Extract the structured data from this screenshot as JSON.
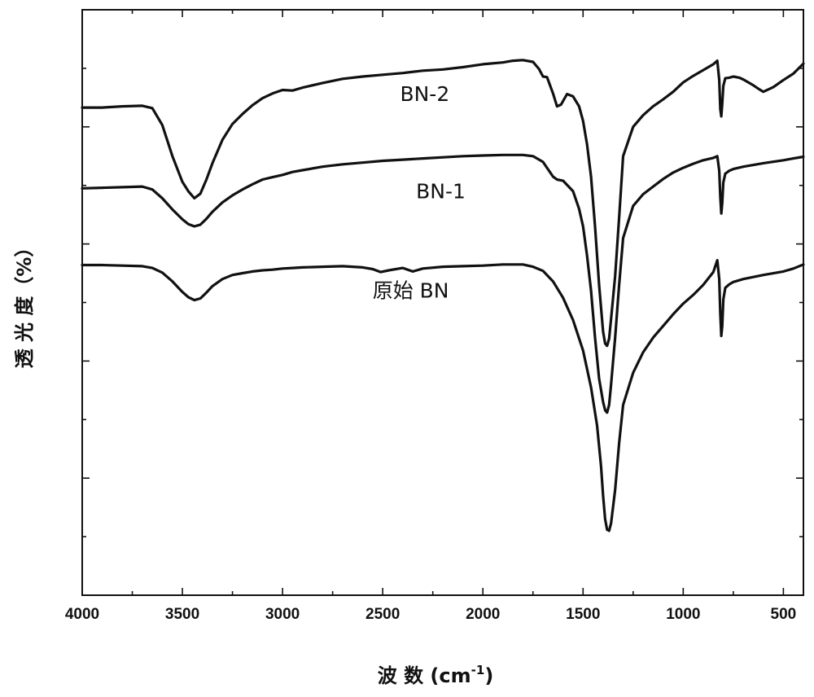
{
  "chart_data": {
    "type": "line",
    "title": "",
    "xlabel": "波 数 (cm",
    "xlabel_sup": "-1",
    "xlabel_close": ")",
    "ylabel": "透 光 度（%）",
    "xlim": [
      4000,
      400
    ],
    "x_reversed": true,
    "x_ticks": [
      4000,
      3500,
      3000,
      2500,
      2000,
      1500,
      1000,
      500
    ],
    "x_tick_labels": [
      "4000",
      "3500",
      "3000",
      "2500",
      "2000",
      "1500",
      "1000",
      "500"
    ],
    "y_tick_labels": false,
    "ylim": [
      0,
      100
    ],
    "grid": false,
    "legend": "none",
    "series": [
      {
        "name": "BN-2",
        "x": [
          4000,
          3900,
          3800,
          3700,
          3650,
          3600,
          3550,
          3500,
          3470,
          3440,
          3410,
          3380,
          3350,
          3300,
          3250,
          3200,
          3150,
          3100,
          3050,
          3000,
          2950,
          2900,
          2800,
          2700,
          2600,
          2500,
          2400,
          2300,
          2200,
          2100,
          2000,
          1900,
          1850,
          1800,
          1750,
          1720,
          1700,
          1680,
          1650,
          1630,
          1610,
          1580,
          1550,
          1520,
          1500,
          1480,
          1460,
          1440,
          1420,
          1400,
          1390,
          1380,
          1370,
          1360,
          1340,
          1320,
          1300,
          1250,
          1200,
          1150,
          1100,
          1050,
          1000,
          950,
          900,
          850,
          830,
          820,
          815,
          810,
          805,
          800,
          790,
          770,
          750,
          720,
          700,
          650,
          620,
          600,
          550,
          500,
          450,
          400
        ],
        "y": [
          83.3,
          83.3,
          83.5,
          83.6,
          83.2,
          80.3,
          75.0,
          70.6,
          69.0,
          67.8,
          68.6,
          71.0,
          73.8,
          77.8,
          80.5,
          82.2,
          83.7,
          84.9,
          85.7,
          86.3,
          86.2,
          86.7,
          87.5,
          88.2,
          88.6,
          88.9,
          89.2,
          89.6,
          89.8,
          90.2,
          90.7,
          91.0,
          91.3,
          91.4,
          91.1,
          89.9,
          88.6,
          88.5,
          85.7,
          83.5,
          83.8,
          85.6,
          85.2,
          83.5,
          81.0,
          77.0,
          71.5,
          63.0,
          53.0,
          45.0,
          43.0,
          42.6,
          43.8,
          47.2,
          54.5,
          64.5,
          75.0,
          80.0,
          82.0,
          83.5,
          84.7,
          86.0,
          87.6,
          88.7,
          89.7,
          90.7,
          91.3,
          88.0,
          83.0,
          81.8,
          84.0,
          87.0,
          88.3,
          88.4,
          88.6,
          88.4,
          88.1,
          87.1,
          86.4,
          86.0,
          86.8,
          88.0,
          89.1,
          90.8
        ]
      },
      {
        "name": "BN-1",
        "x": [
          4000,
          3900,
          3800,
          3700,
          3650,
          3600,
          3550,
          3500,
          3470,
          3440,
          3410,
          3380,
          3350,
          3300,
          3250,
          3200,
          3150,
          3100,
          3050,
          3000,
          2950,
          2900,
          2800,
          2700,
          2600,
          2500,
          2400,
          2300,
          2200,
          2100,
          2000,
          1900,
          1850,
          1800,
          1750,
          1700,
          1680,
          1650,
          1630,
          1600,
          1550,
          1520,
          1500,
          1480,
          1460,
          1440,
          1420,
          1400,
          1390,
          1380,
          1370,
          1360,
          1340,
          1320,
          1300,
          1250,
          1200,
          1150,
          1100,
          1050,
          1000,
          950,
          900,
          850,
          830,
          820,
          815,
          810,
          805,
          800,
          790,
          770,
          750,
          700,
          600,
          500,
          450,
          400
        ],
        "y": [
          69.5,
          69.6,
          69.7,
          69.8,
          69.3,
          67.8,
          65.9,
          64.2,
          63.4,
          63.0,
          63.3,
          64.3,
          65.5,
          67.1,
          68.3,
          69.3,
          70.2,
          71.0,
          71.4,
          71.8,
          72.3,
          72.6,
          73.2,
          73.6,
          73.9,
          74.2,
          74.4,
          74.6,
          74.8,
          75.0,
          75.1,
          75.2,
          75.2,
          75.2,
          75.0,
          74.0,
          73.0,
          71.5,
          71.0,
          70.8,
          69.0,
          66.0,
          63.0,
          58.0,
          52.0,
          44.0,
          37.0,
          33.0,
          31.6,
          31.2,
          32.5,
          36.0,
          44.0,
          53.0,
          61.0,
          66.5,
          68.5,
          69.8,
          71.1,
          72.2,
          73.0,
          73.7,
          74.3,
          74.7,
          75.0,
          72.5,
          68.0,
          65.2,
          67.0,
          70.5,
          72.0,
          72.5,
          72.8,
          73.2,
          73.8,
          74.3,
          74.6,
          74.9
        ]
      },
      {
        "name": "原始 BN",
        "x": [
          4000,
          3900,
          3800,
          3700,
          3650,
          3600,
          3550,
          3500,
          3470,
          3440,
          3410,
          3380,
          3350,
          3300,
          3250,
          3200,
          3150,
          3100,
          3050,
          3000,
          2950,
          2900,
          2800,
          2700,
          2600,
          2550,
          2510,
          2470,
          2400,
          2350,
          2300,
          2200,
          2100,
          2000,
          1900,
          1850,
          1800,
          1750,
          1700,
          1650,
          1600,
          1550,
          1500,
          1460,
          1430,
          1410,
          1400,
          1390,
          1380,
          1370,
          1360,
          1340,
          1320,
          1300,
          1250,
          1200,
          1150,
          1100,
          1050,
          1000,
          950,
          900,
          850,
          830,
          820,
          815,
          810,
          805,
          800,
          790,
          770,
          750,
          700,
          600,
          500,
          450,
          400
        ],
        "y": [
          56.4,
          56.4,
          56.3,
          56.2,
          55.9,
          55.1,
          53.6,
          51.8,
          50.9,
          50.4,
          50.7,
          51.7,
          52.8,
          54.0,
          54.7,
          55.0,
          55.3,
          55.5,
          55.6,
          55.8,
          55.9,
          56.0,
          56.1,
          56.2,
          56.0,
          55.7,
          55.2,
          55.5,
          55.9,
          55.3,
          55.8,
          56.1,
          56.2,
          56.3,
          56.5,
          56.5,
          56.5,
          56.1,
          55.4,
          53.6,
          50.8,
          47.0,
          41.8,
          35.5,
          29.0,
          22.0,
          17.0,
          13.0,
          11.2,
          11.0,
          12.3,
          18.0,
          26.0,
          32.5,
          38.0,
          41.5,
          44.0,
          46.0,
          48.0,
          49.8,
          51.3,
          53.0,
          55.2,
          57.2,
          54.0,
          48.0,
          44.3,
          46.0,
          50.5,
          52.5,
          53.1,
          53.5,
          54.0,
          54.7,
          55.3,
          55.8,
          56.5
        ]
      }
    ],
    "annotations": [
      {
        "text": "BN-2",
        "x": 2290,
        "y": 84.4
      },
      {
        "text": "BN-1",
        "x": 2210,
        "y": 67.8
      },
      {
        "text": "原始 BN",
        "x": 2360,
        "y": 50.8
      }
    ]
  }
}
